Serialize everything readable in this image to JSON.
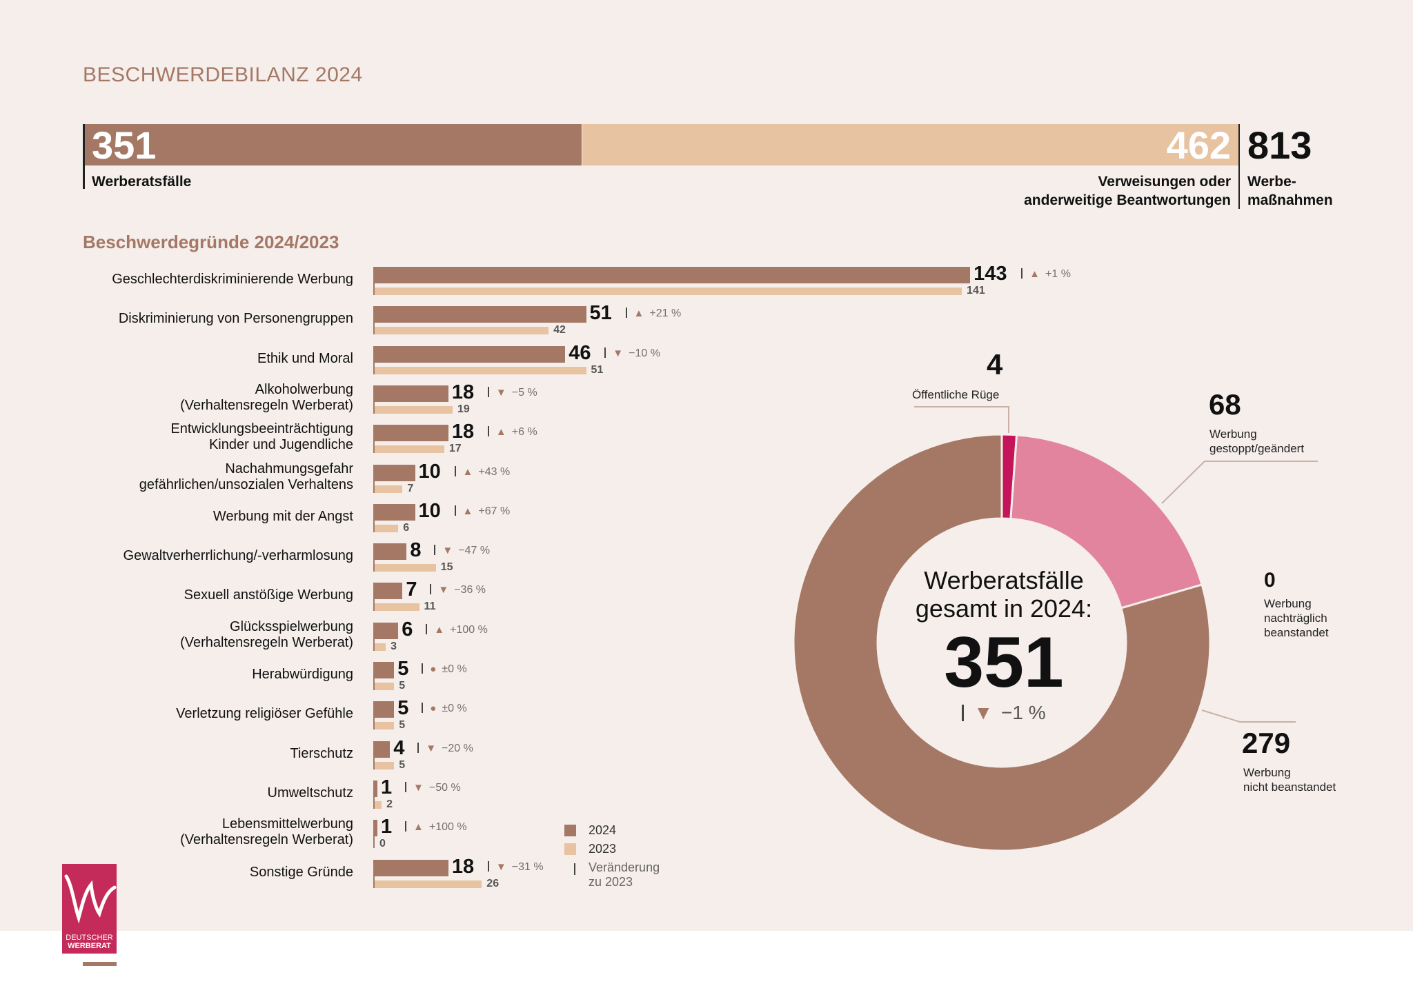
{
  "title": "BESCHWERDEBILANZ 2024",
  "summary": {
    "werberatsfaelle": {
      "value": "351",
      "label": "Werberatsfälle"
    },
    "verweisungen": {
      "value": "462",
      "label_line1": "Verweisungen oder",
      "label_line2": "anderweitige Beantwortungen"
    },
    "werbemassnahmen": {
      "value": "813",
      "label_line1": "Werbe-",
      "label_line2": "maßnahmen"
    }
  },
  "section_title": "Beschwerdegründe 2024/2023",
  "chart_data": [
    {
      "type": "bar",
      "title": "Beschwerdegründe 2024/2023",
      "orientation": "horizontal",
      "categories": [
        {
          "line1": "Geschlechterdiskriminierende Werbung",
          "line2": ""
        },
        {
          "line1": "Diskriminierung von Personengruppen",
          "line2": ""
        },
        {
          "line1": "Ethik und Moral",
          "line2": ""
        },
        {
          "line1": "Alkoholwerbung",
          "line2": "(Verhaltensregeln Werberat)"
        },
        {
          "line1": "Entwicklungsbeeinträchtigung",
          "line2": "Kinder und Jugendliche"
        },
        {
          "line1": "Nachahmungsgefahr",
          "line2": "gefährlichen/unsozialen Verhaltens"
        },
        {
          "line1": "Werbung mit der Angst",
          "line2": ""
        },
        {
          "line1": "Gewaltverherrlichung/-verharmlosung",
          "line2": ""
        },
        {
          "line1": "Sexuell anstößige Werbung",
          "line2": ""
        },
        {
          "line1": "Glücksspielwerbung",
          "line2": "(Verhaltensregeln Werberat)"
        },
        {
          "line1": "Herabwürdigung",
          "line2": ""
        },
        {
          "line1": "Verletzung religiöser Gefühle",
          "line2": ""
        },
        {
          "line1": "Tierschutz",
          "line2": ""
        },
        {
          "line1": "Umweltschutz",
          "line2": ""
        },
        {
          "line1": "Lebensmittelwerbung",
          "line2": "(Verhaltensregeln Werberat)"
        },
        {
          "line1": "Sonstige Gründe",
          "line2": ""
        }
      ],
      "series": [
        {
          "name": "2024",
          "color": "#a57866",
          "values": [
            143,
            51,
            46,
            18,
            18,
            10,
            10,
            8,
            7,
            6,
            5,
            5,
            4,
            1,
            1,
            18
          ]
        },
        {
          "name": "2023",
          "color": "#e8c3a1",
          "values": [
            141,
            42,
            51,
            19,
            17,
            7,
            6,
            15,
            11,
            3,
            5,
            5,
            5,
            2,
            0,
            26
          ]
        }
      ],
      "changes": [
        {
          "dir": "up",
          "text": "+1 %"
        },
        {
          "dir": "up",
          "text": "+21 %"
        },
        {
          "dir": "down",
          "text": "−10 %"
        },
        {
          "dir": "down",
          "text": "−5 %"
        },
        {
          "dir": "up",
          "text": "+6 %"
        },
        {
          "dir": "up",
          "text": "+43 %"
        },
        {
          "dir": "up",
          "text": "+67 %"
        },
        {
          "dir": "down",
          "text": "−47 %"
        },
        {
          "dir": "down",
          "text": "−36 %"
        },
        {
          "dir": "up",
          "text": "+100 %"
        },
        {
          "dir": "same",
          "text": "±0 %"
        },
        {
          "dir": "same",
          "text": "±0 %"
        },
        {
          "dir": "down",
          "text": "−20 %"
        },
        {
          "dir": "down",
          "text": "−50 %"
        },
        {
          "dir": "up",
          "text": "+100 %"
        },
        {
          "dir": "down",
          "text": "−31 %"
        }
      ],
      "legend": {
        "y2024": "2024",
        "y2023": "2023",
        "change_line1": "Veränderung",
        "change_line2": "zu 2023"
      }
    },
    {
      "type": "pie",
      "title": "Werberatsfälle gesamt in 2024",
      "center_line1": "Werberatsfälle",
      "center_line2": "gesamt in 2024:",
      "center_value": "351",
      "center_change": "−1 %",
      "slices": [
        {
          "value": 4,
          "label": "Öffentliche Rüge",
          "color": "#c5155a"
        },
        {
          "value": 68,
          "label_line1": "Werbung",
          "label_line2": "gestoppt/geändert",
          "color": "#e2849d"
        },
        {
          "value": 0,
          "label_line1": "Werbung",
          "label_line2": "nachträglich",
          "label_line3": "beanstandet",
          "color": "#e8c3a1"
        },
        {
          "value": 279,
          "label_line1": "Werbung",
          "label_line2": "nicht beanstandet",
          "color": "#a57866"
        }
      ]
    }
  ],
  "logo": {
    "line1": "DEUTSCHER",
    "line2": "WERBERAT"
  }
}
